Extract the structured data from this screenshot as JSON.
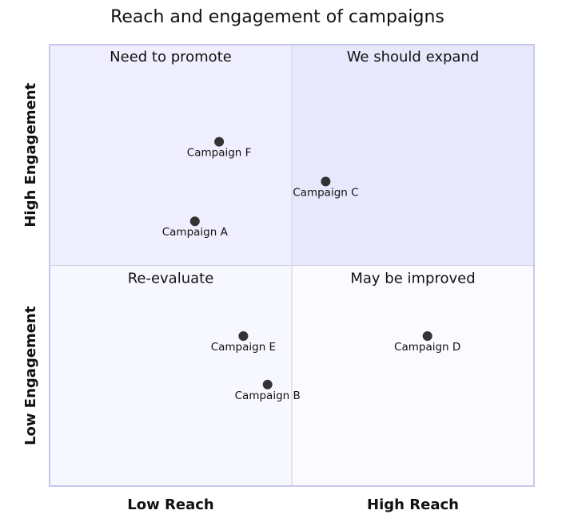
{
  "chart_data": {
    "type": "scatter",
    "title": "Reach and engagement of campaigns",
    "x_axis": {
      "low_label": "Low Reach",
      "high_label": "High Reach",
      "range": [
        0,
        1
      ]
    },
    "y_axis": {
      "low_label": "Low Engagement",
      "high_label": "High Engagement",
      "range": [
        0,
        1
      ]
    },
    "quadrants": {
      "top_left": "Need to promote",
      "top_right": "We should expand",
      "bottom_left": "Re-evaluate",
      "bottom_right": "May be improved"
    },
    "points": [
      {
        "name": "Campaign A",
        "x": 0.3,
        "y": 0.6
      },
      {
        "name": "Campaign B",
        "x": 0.45,
        "y": 0.23
      },
      {
        "name": "Campaign C",
        "x": 0.57,
        "y": 0.69
      },
      {
        "name": "Campaign D",
        "x": 0.78,
        "y": 0.34
      },
      {
        "name": "Campaign E",
        "x": 0.4,
        "y": 0.34
      },
      {
        "name": "Campaign F",
        "x": 0.35,
        "y": 0.78
      }
    ]
  },
  "colors": {
    "quadrant_top_left": "#efefff",
    "quadrant_top_right": "#e8e8fc",
    "quadrant_bottom_left": "#f7f7ff",
    "quadrant_bottom_right": "#fafaff",
    "border": "#c8c8ec",
    "divider": "#cfcfde",
    "point": "#333333",
    "text": "#111111"
  }
}
